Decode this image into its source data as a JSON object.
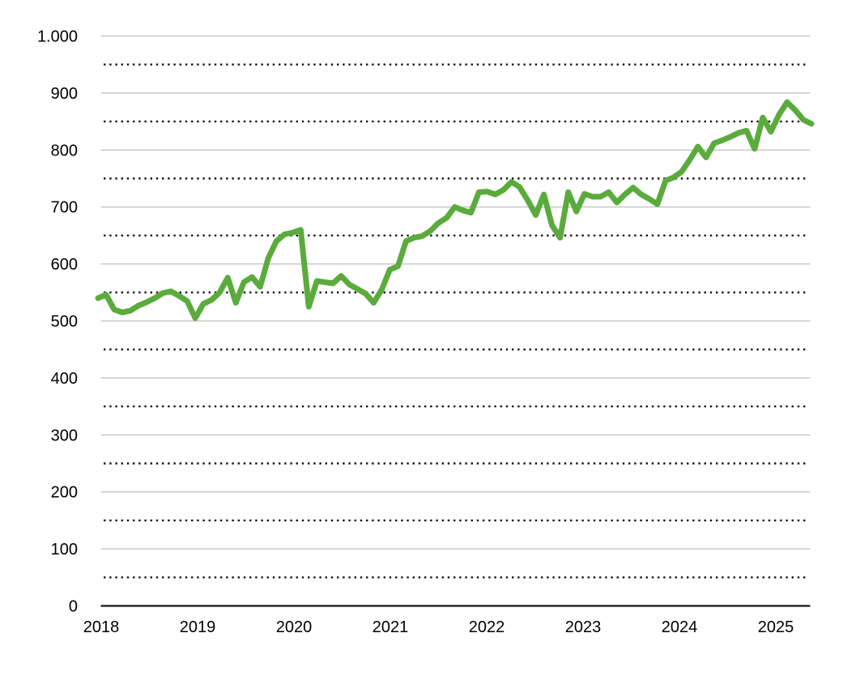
{
  "page": {
    "background": "#ffffff",
    "title": ""
  },
  "chart_data": {
    "type": "line",
    "title": "",
    "subtitle": "",
    "legend": "none",
    "x_tick_labels": [
      "2018",
      "2019",
      "2020",
      "2021",
      "2022",
      "2023",
      "2024",
      "2025"
    ],
    "y_tick_labels": [
      "0",
      "100",
      "200",
      "300",
      "400",
      "500",
      "600",
      "700",
      "800",
      "900",
      "1.000"
    ],
    "ylim": [
      0,
      1000
    ],
    "y_major_step": 100,
    "y_minor_step": 50,
    "grid": {
      "major": "solid-gray-horizontal",
      "minor": "dotted-black-horizontal",
      "vertical": "off"
    },
    "x_axis_line": "solid-black-bottom",
    "sampling": "monthly",
    "x_range": "Jan 2018 - May 2025",
    "series": [
      {
        "name": "index-value",
        "color": "#5AAB3C",
        "values": [
          540,
          546,
          520,
          515,
          518,
          527,
          533,
          540,
          549,
          552,
          544,
          535,
          505,
          530,
          537,
          550,
          576,
          532,
          568,
          577,
          560,
          610,
          640,
          652,
          655,
          660,
          525,
          570,
          568,
          566,
          579,
          564,
          556,
          548,
          532,
          555,
          590,
          596,
          640,
          646,
          649,
          658,
          672,
          681,
          700,
          694,
          690,
          726,
          727,
          722,
          730,
          744,
          735,
          712,
          686,
          722,
          668,
          646,
          726,
          692,
          723,
          718,
          718,
          726,
          708,
          722,
          734,
          722,
          714,
          705,
          746,
          752,
          762,
          783,
          806,
          787,
          812,
          817,
          823,
          830,
          834,
          802,
          857,
          832,
          862,
          884,
          870,
          853,
          846
        ]
      }
    ],
    "colors": {
      "line": "#5AAB3C",
      "major_grid": "#C5C5C5",
      "minor_grid": "#141414",
      "axis": "#141414",
      "label_text": "#000000"
    }
  }
}
